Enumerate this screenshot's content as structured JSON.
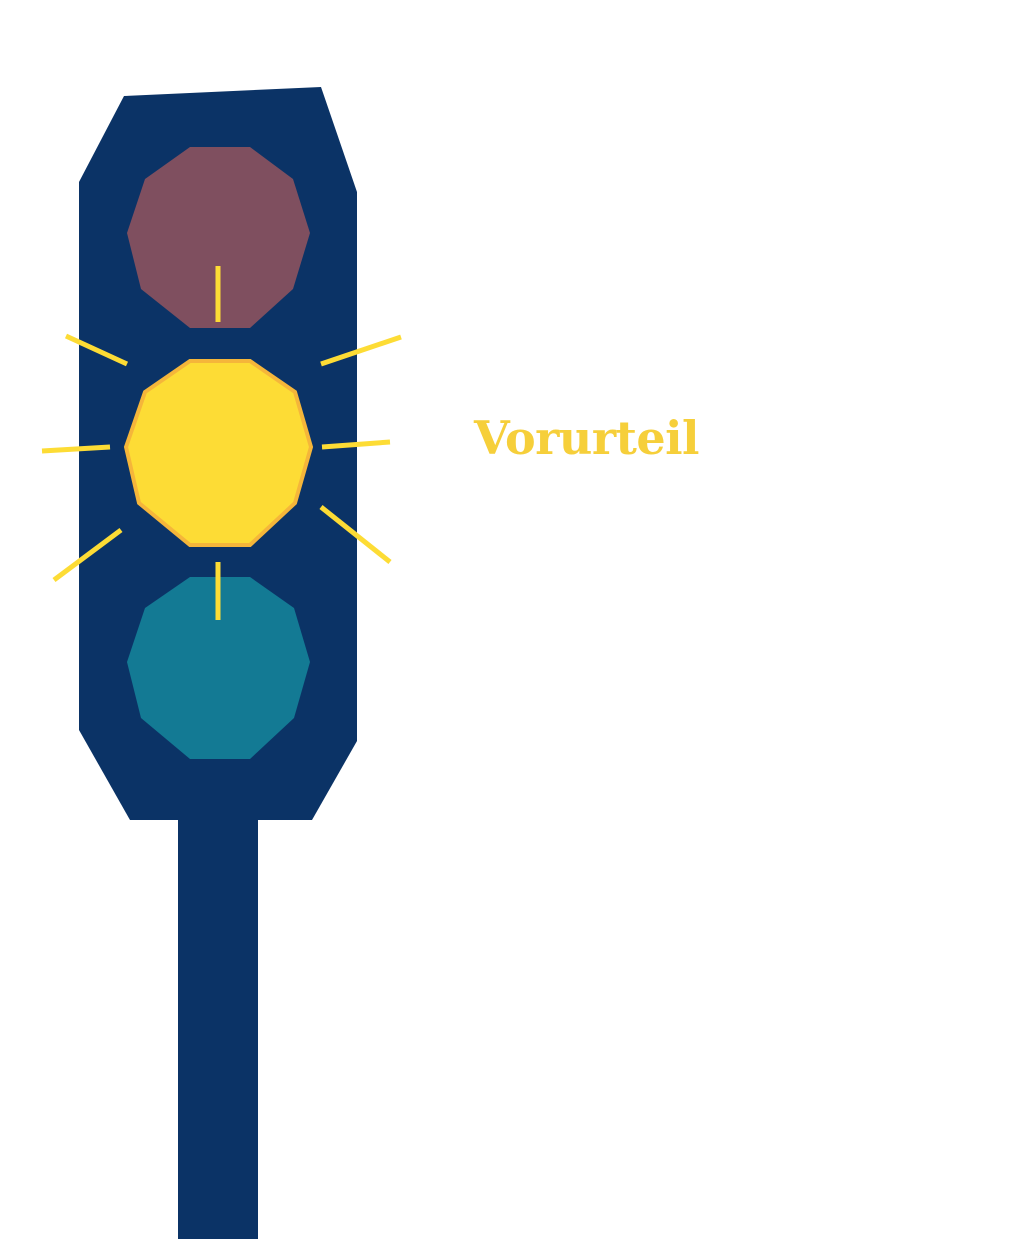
{
  "label": {
    "text": "Vorurteil"
  },
  "traffic_light": {
    "active_light": "yellow",
    "lights": [
      {
        "position": "top",
        "state": "off"
      },
      {
        "position": "middle",
        "state": "on"
      },
      {
        "position": "bottom",
        "state": "off"
      }
    ]
  },
  "colors": {
    "housing": "#0b3366",
    "pole": "#0b3366",
    "red_off": "#7f4f5f",
    "yellow_on": "#fddc35",
    "yellow_outline": "#f5b63a",
    "green_off": "#137a94",
    "rays": "#fddc35",
    "label_text": "#f6cf3a",
    "background": "#ffffff"
  }
}
